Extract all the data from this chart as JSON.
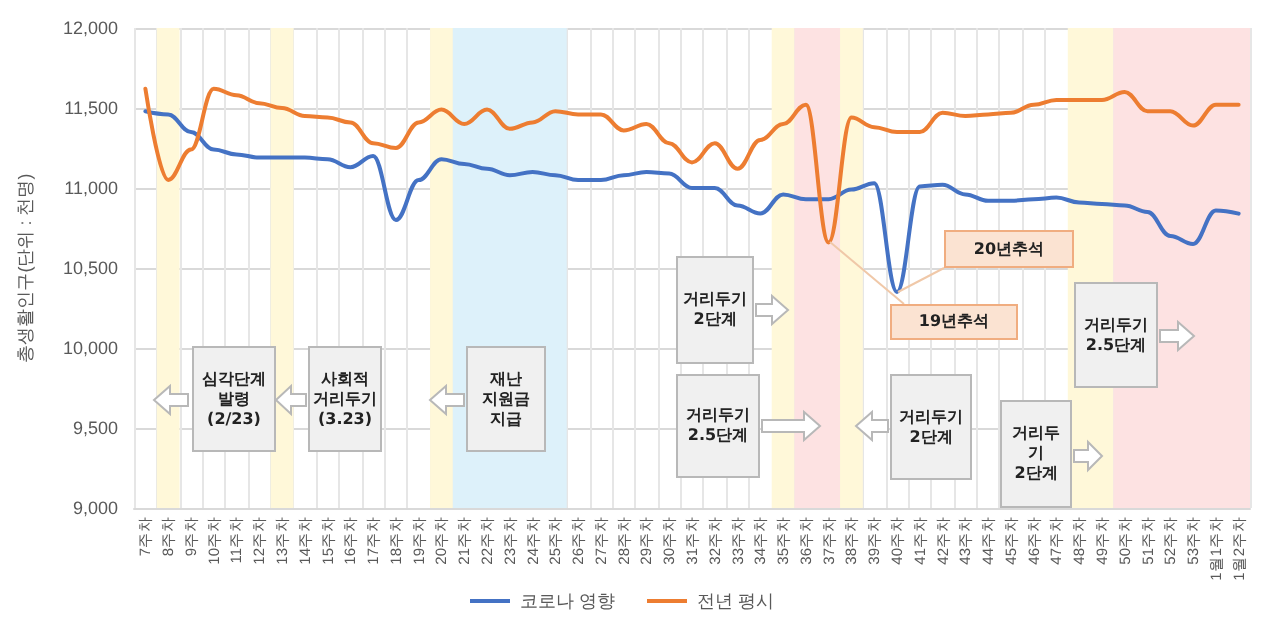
{
  "chart_data": {
    "type": "line",
    "ylabel": "총생활인구(단위 : 천명)",
    "categories": [
      "7주차",
      "8주차",
      "9주차",
      "10주차",
      "11주차",
      "12주차",
      "13주차",
      "14주차",
      "15주차",
      "16주차",
      "17주차",
      "18주차",
      "19주차",
      "20주차",
      "21주차",
      "22주차",
      "23주차",
      "24주차",
      "25주차",
      "26주차",
      "27주차",
      "28주차",
      "29주차",
      "30주차",
      "31주차",
      "32주차",
      "33주차",
      "34주차",
      "35주차",
      "36주차",
      "37주차",
      "38주차",
      "39주차",
      "40주차",
      "41주차",
      "42주차",
      "43주차",
      "44주차",
      "45주차",
      "46주차",
      "47주차",
      "48주차",
      "49주차",
      "50주차",
      "51주차",
      "52주차",
      "53주차",
      "1월1주차",
      "1월2주차"
    ],
    "series": [
      {
        "name": "코로나 영향",
        "color": "#4472c4",
        "values": [
          11480,
          11460,
          11350,
          11240,
          11210,
          11190,
          11190,
          11190,
          11180,
          11130,
          11200,
          10800,
          11050,
          11180,
          11150,
          11120,
          11080,
          11100,
          11080,
          11050,
          11050,
          11080,
          11100,
          11090,
          11000,
          11000,
          10890,
          10840,
          10960,
          10930,
          10930,
          10990,
          11030,
          10350,
          11010,
          11020,
          10960,
          10920,
          10920,
          10930,
          10940,
          10910,
          10900,
          10890,
          10850,
          10700,
          10650,
          10860,
          10840
        ]
      },
      {
        "name": "전년 평시",
        "color": "#ed7d31",
        "values": [
          11620,
          11050,
          11240,
          11620,
          11580,
          11530,
          11500,
          11450,
          11440,
          11410,
          11280,
          11250,
          11410,
          11490,
          11400,
          11490,
          11370,
          11410,
          11480,
          11460,
          11460,
          11360,
          11400,
          11280,
          11160,
          11280,
          11120,
          11300,
          11400,
          11520,
          10660,
          11440,
          11380,
          11350,
          11350,
          11470,
          11450,
          11460,
          11470,
          11520,
          11550,
          11550,
          11550,
          11600,
          11480,
          11480,
          11390,
          11520,
          11520
        ]
      }
    ],
    "ylim": [
      9000,
      12000
    ],
    "yticks": [
      {
        "value": 9000,
        "label": "9,000"
      },
      {
        "value": 9500,
        "label": "9,500"
      },
      {
        "value": 10000,
        "label": "10,000"
      },
      {
        "value": 10500,
        "label": "10,500"
      },
      {
        "value": 11000,
        "label": "11,000"
      },
      {
        "value": 11500,
        "label": "11,500"
      },
      {
        "value": 12000,
        "label": "12,000"
      }
    ],
    "grid": true,
    "legend": "bottom",
    "marker": "none",
    "line_style": "solid",
    "bands": [
      {
        "axis": "x",
        "from": "8주차",
        "to": "8주차",
        "color": "#fff8d9"
      },
      {
        "axis": "x",
        "from": "13주차",
        "to": "13주차",
        "color": "#fff8d9"
      },
      {
        "axis": "x",
        "from": "20주차",
        "to": "20주차",
        "color": "#fff8d9"
      },
      {
        "axis": "x",
        "from": "21주차",
        "to": "25주차",
        "color": "#ddf1fa"
      },
      {
        "axis": "x",
        "from": "35주차",
        "to": "35주차",
        "color": "#fff8d9"
      },
      {
        "axis": "x",
        "from": "36주차",
        "to": "37주차",
        "color": "#fde2e2"
      },
      {
        "axis": "x",
        "from": "38주차",
        "to": "38주차",
        "color": "#fff8d9"
      },
      {
        "axis": "x",
        "from": "48주차",
        "to": "49주차",
        "color": "#fff8d9"
      },
      {
        "axis": "x",
        "from": "50주차",
        "to": "1월2주차",
        "color": "#fde2e2"
      }
    ],
    "annotations": [
      "심각단계\n발령\n(2/23)",
      "사회적\n거리두기\n(3.23)",
      "재난\n지원금\n지급",
      "거리두기\n2단계",
      "거리두기\n2.5단계",
      "20년추석",
      "19년추석",
      "거리두기\n2단계",
      "거리두\n기\n2단계",
      "거리두기\n2.5단계"
    ]
  }
}
